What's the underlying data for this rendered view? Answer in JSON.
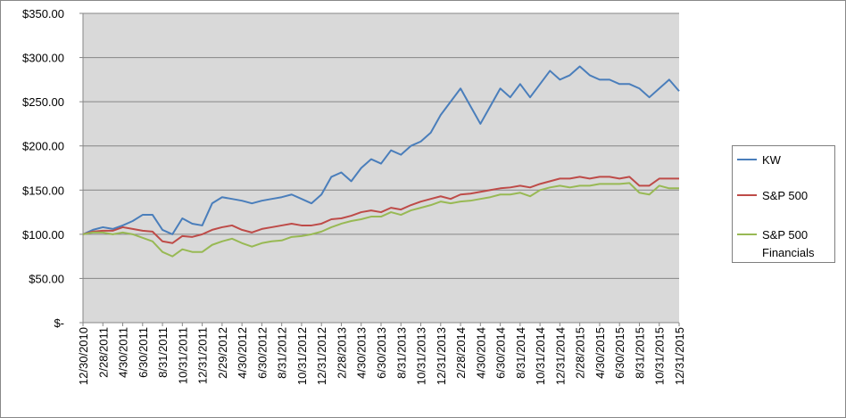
{
  "chart_data": {
    "type": "line",
    "categories": [
      "12/30/2010",
      null,
      "2/28/2011",
      null,
      "4/30/2011",
      null,
      "6/30/2011",
      null,
      "8/31/2011",
      null,
      "10/31/2011",
      null,
      "12/31/2011",
      null,
      "2/29/2012",
      null,
      "4/30/2012",
      null,
      "6/30/2012",
      null,
      "8/31/2012",
      null,
      "10/31/2012",
      null,
      "12/31/2012",
      null,
      "2/28/2013",
      null,
      "4/30/2013",
      null,
      "6/30/2013",
      null,
      "8/31/2013",
      null,
      "10/31/2013",
      null,
      "12/31/2013",
      null,
      "2/28/2014",
      null,
      "4/30/2014",
      null,
      "6/30/2014",
      null,
      "8/31/2014",
      null,
      "10/31/2014",
      null,
      "12/31/2014",
      null,
      "2/28/2015",
      null,
      "4/30/2015",
      null,
      "6/30/2015",
      null,
      "8/31/2015",
      null,
      "10/31/2015",
      null,
      "12/31/2015"
    ],
    "series": [
      {
        "name": "KW",
        "color": "#4a7ebb",
        "values": [
          100,
          105,
          108,
          106,
          110,
          115,
          122,
          122,
          105,
          100,
          118,
          112,
          110,
          135,
          142,
          140,
          138,
          135,
          138,
          140,
          142,
          145,
          140,
          135,
          145,
          165,
          170,
          160,
          175,
          185,
          180,
          195,
          190,
          200,
          205,
          215,
          235,
          250,
          265,
          245,
          225,
          245,
          265,
          255,
          270,
          255,
          270,
          285,
          275,
          280,
          290,
          280,
          275,
          275,
          270,
          270,
          265,
          255,
          265,
          275,
          262
        ]
      },
      {
        "name": "S&P 500",
        "color": "#be4b48",
        "values": [
          100,
          103,
          104,
          104,
          108,
          106,
          104,
          103,
          92,
          90,
          98,
          97,
          100,
          105,
          108,
          110,
          105,
          102,
          106,
          108,
          110,
          112,
          110,
          110,
          112,
          117,
          118,
          121,
          125,
          127,
          125,
          130,
          128,
          133,
          137,
          140,
          143,
          140,
          145,
          146,
          148,
          150,
          152,
          153,
          155,
          153,
          157,
          160,
          163,
          163,
          165,
          163,
          165,
          165,
          163,
          165,
          155,
          155,
          163,
          163,
          163
        ]
      },
      {
        "name": "S&P 500 Financials",
        "color": "#98b954",
        "values": [
          100,
          102,
          102,
          100,
          102,
          100,
          96,
          92,
          80,
          75,
          83,
          80,
          80,
          88,
          92,
          95,
          90,
          86,
          90,
          92,
          93,
          97,
          98,
          100,
          103,
          108,
          112,
          115,
          117,
          120,
          120,
          125,
          122,
          127,
          130,
          133,
          137,
          135,
          137,
          138,
          140,
          142,
          145,
          145,
          147,
          143,
          150,
          153,
          155,
          153,
          155,
          155,
          157,
          157,
          157,
          158,
          147,
          145,
          155,
          152,
          152
        ]
      }
    ],
    "ylim": [
      0,
      350
    ],
    "yticks": [
      {
        "value": 0,
        "label": "$-"
      },
      {
        "value": 50,
        "label": "$50.00"
      },
      {
        "value": 100,
        "label": "$100.00"
      },
      {
        "value": 150,
        "label": "$150.00"
      },
      {
        "value": 200,
        "label": "$200.00"
      },
      {
        "value": 250,
        "label": "$250.00"
      },
      {
        "value": 300,
        "label": "$300.00"
      },
      {
        "value": 350,
        "label": "$350.00"
      }
    ],
    "grid": true
  }
}
